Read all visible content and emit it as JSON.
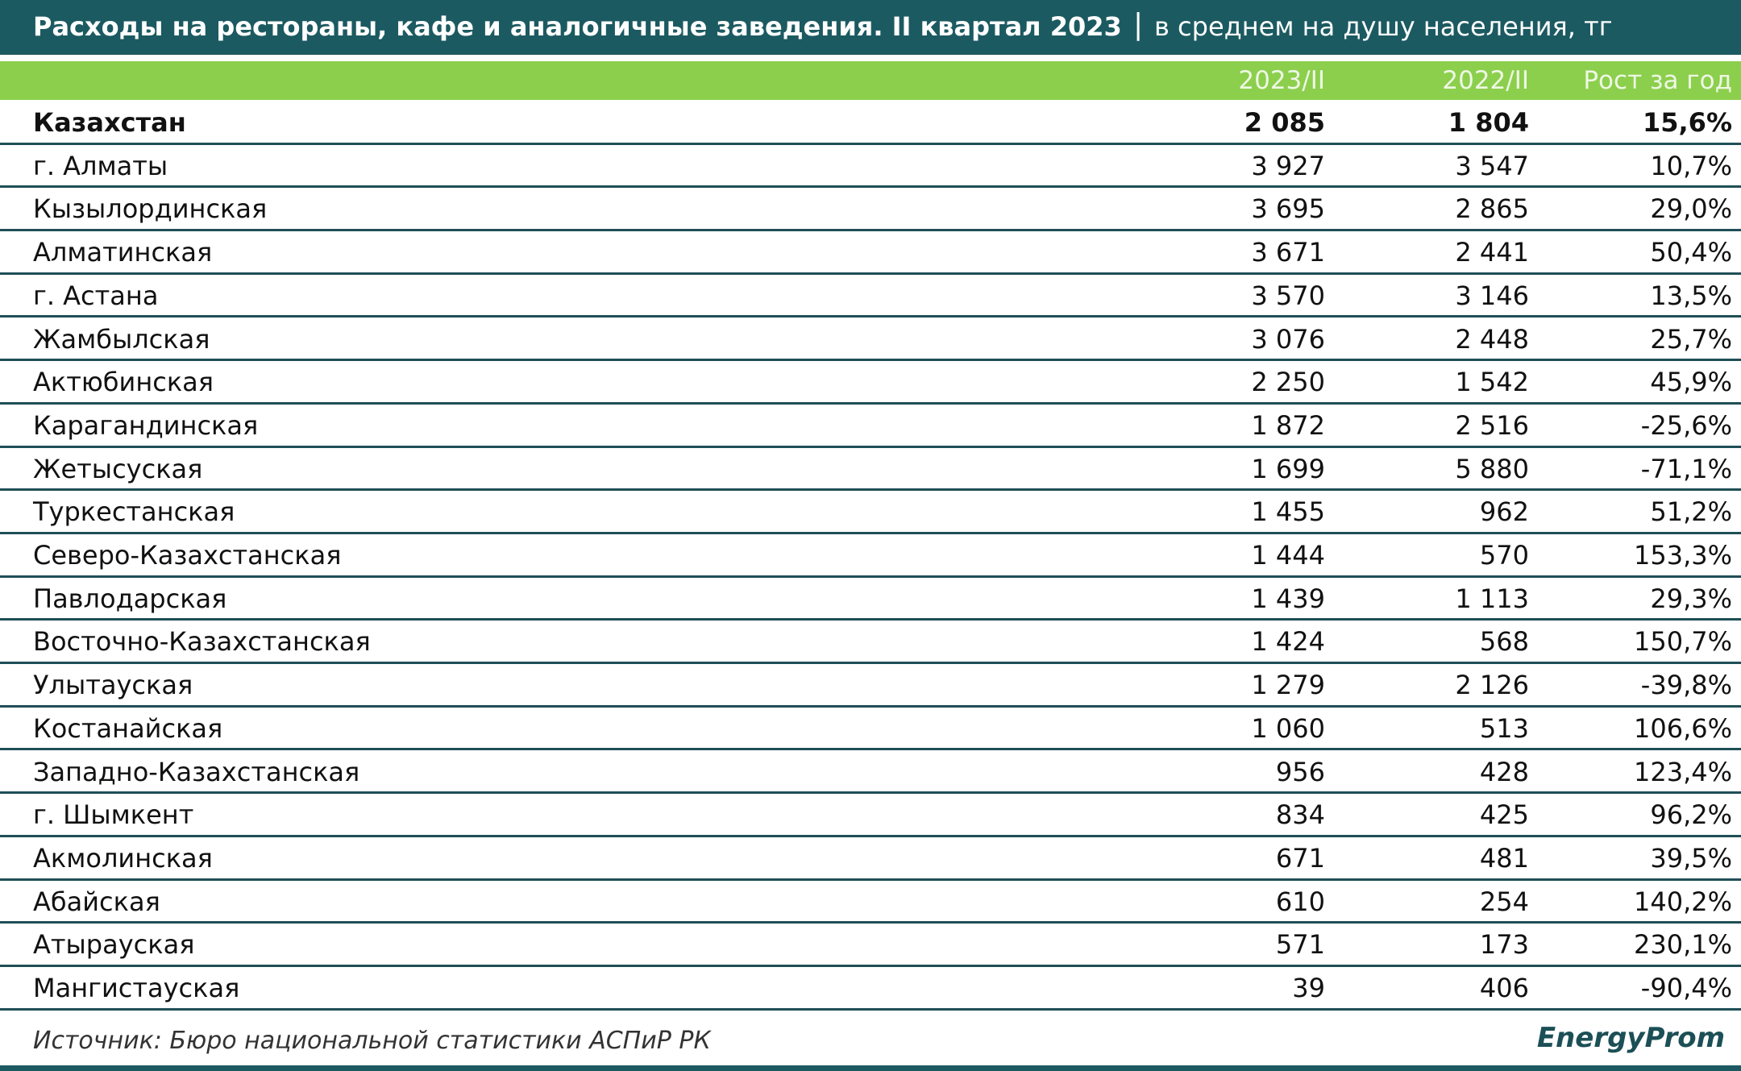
{
  "header": {
    "title": "Расходы на рестораны, кафе и аналогичные заведения. II квартал 2023",
    "subtitle": "в среднем на душу населения, тг"
  },
  "table": {
    "columns": [
      "2023/II",
      "2022/II",
      "Рост за год"
    ],
    "rows": [
      [
        "Казахстан",
        "2 085",
        "1 804",
        "15,6%"
      ],
      [
        "г. Алматы",
        "3 927",
        "3 547",
        "10,7%"
      ],
      [
        "Кызылординская",
        "3 695",
        "2 865",
        "29,0%"
      ],
      [
        "Алматинская",
        "3 671",
        "2 441",
        "50,4%"
      ],
      [
        "г. Астана",
        "3 570",
        "3 146",
        "13,5%"
      ],
      [
        "Жамбылская",
        "3 076",
        "2 448",
        "25,7%"
      ],
      [
        "Актюбинская",
        "2 250",
        "1 542",
        "45,9%"
      ],
      [
        "Карагандинская",
        "1 872",
        "2 516",
        "-25,6%"
      ],
      [
        "Жетысуская",
        "1 699",
        "5 880",
        "-71,1%"
      ],
      [
        "Туркестанская",
        "1 455",
        "962",
        "51,2%"
      ],
      [
        "Северо-Казахстанская",
        "1 444",
        "570",
        "153,3%"
      ],
      [
        "Павлодарская",
        "1 439",
        "1 113",
        "29,3%"
      ],
      [
        "Восточно-Казахстанская",
        "1 424",
        "568",
        "150,7%"
      ],
      [
        "Улытауская",
        "1 279",
        "2 126",
        "-39,8%"
      ],
      [
        "Костанайская",
        "1 060",
        "513",
        "106,6%"
      ],
      [
        "Западно-Казахстанская",
        "956",
        "428",
        "123,4%"
      ],
      [
        "г. Шымкент",
        "834",
        "425",
        "96,2%"
      ],
      [
        "Акмолинская",
        "671",
        "481",
        "39,5%"
      ],
      [
        "Абайская",
        "610",
        "254",
        "140,2%"
      ],
      [
        "Атырауская",
        "571",
        "173",
        "230,1%"
      ],
      [
        "Мангистауская",
        "39",
        "406",
        "-90,4%"
      ]
    ]
  },
  "footer": {
    "source": "Источник: Бюро национальной статистики АСПиР РК",
    "logo": "EnergyProm"
  }
}
